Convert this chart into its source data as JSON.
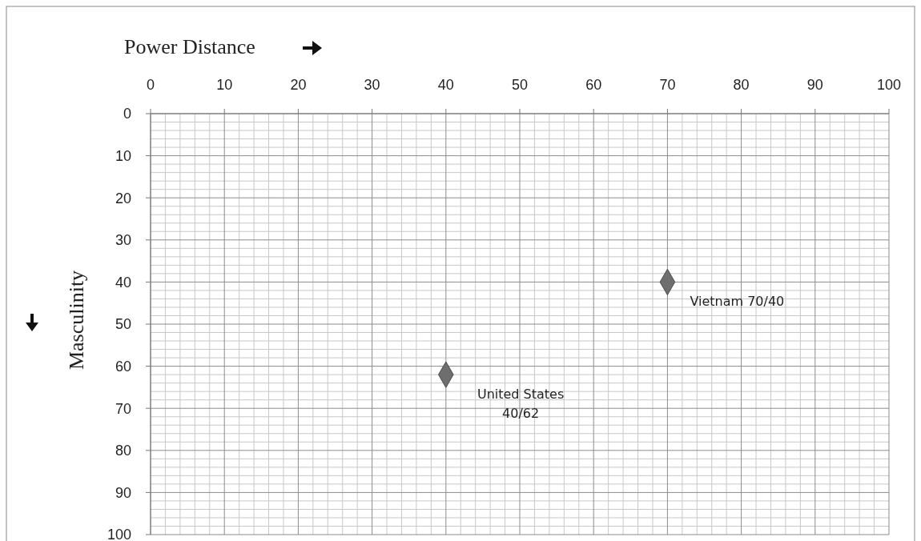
{
  "chart_data": {
    "type": "scatter",
    "xlabel": "Power Distance",
    "ylabel": "Masculinity",
    "xlim": [
      0,
      100
    ],
    "xticks": [
      0,
      10,
      20,
      30,
      40,
      50,
      60,
      70,
      80,
      90,
      100
    ],
    "ylim": [
      100,
      0
    ],
    "yticks": [
      0,
      10,
      20,
      30,
      40,
      50,
      60,
      70,
      80,
      90,
      100
    ],
    "grid": true,
    "marker": "diamond",
    "series": [
      {
        "color": "#6e6e6e",
        "x": [
          70,
          40
        ],
        "values": [
          40,
          62
        ]
      }
    ],
    "annotations": [
      {
        "text": "Vietnam 70/40",
        "x": 70,
        "y": 40
      },
      {
        "text": "United States 40/62",
        "x": 40,
        "y": 62
      }
    ]
  }
}
